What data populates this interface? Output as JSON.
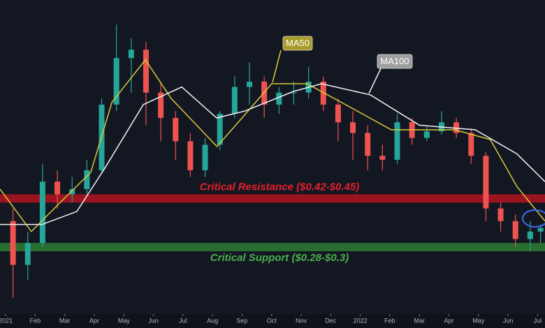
{
  "chart_data": {
    "type": "candlestick",
    "log_scale": true,
    "xlim": [
      -0.19,
      18.25
    ],
    "ylim": [
      0.166,
      2.27
    ],
    "xticks": [
      {
        "value": 0,
        "label": "2021"
      },
      {
        "value": 1,
        "label": "Feb"
      },
      {
        "value": 2,
        "label": "Mar"
      },
      {
        "value": 3,
        "label": "Apr"
      },
      {
        "value": 4,
        "label": "May"
      },
      {
        "value": 5,
        "label": "Jun"
      },
      {
        "value": 6,
        "label": "Jul"
      },
      {
        "value": 7,
        "label": "Aug"
      },
      {
        "value": 8,
        "label": "Sep"
      },
      {
        "value": 9,
        "label": "Oct"
      },
      {
        "value": 10,
        "label": "Nov"
      },
      {
        "value": 11,
        "label": "Dec"
      },
      {
        "value": 12,
        "label": "2022"
      },
      {
        "value": 13,
        "label": "Feb"
      },
      {
        "value": 14,
        "label": "Mar"
      },
      {
        "value": 15,
        "label": "Apr"
      },
      {
        "value": 16,
        "label": "May"
      },
      {
        "value": 17,
        "label": "Jun"
      },
      {
        "value": 18,
        "label": "Jul"
      }
    ],
    "up_color": "#26a69a",
    "down_color": "#ef5350",
    "x": [
      0.25,
      0.75,
      1.25,
      1.75,
      2.25,
      2.75,
      3.25,
      3.75,
      4.25,
      4.75,
      5.25,
      5.75,
      6.25,
      6.75,
      7.25,
      7.75,
      8.25,
      8.75,
      9.25,
      9.75,
      10.25,
      10.75,
      11.25,
      11.75,
      12.25,
      12.75,
      13.25,
      13.75,
      14.25,
      14.75,
      15.25,
      15.75,
      16.25,
      16.75,
      17.25,
      17.75,
      18.1
    ],
    "open": [
      0.36,
      0.25,
      0.3,
      0.5,
      0.45,
      0.47,
      0.55,
      0.95,
      1.4,
      1.5,
      1.05,
      0.85,
      0.7,
      0.55,
      0.68,
      0.88,
      1.1,
      1.15,
      0.95,
      1.05,
      1.05,
      1.15,
      0.95,
      0.82,
      0.75,
      0.62,
      0.6,
      0.82,
      0.72,
      0.76,
      0.82,
      0.75,
      0.62,
      0.4,
      0.36,
      0.31,
      0.33
    ],
    "high": [
      0.4,
      0.33,
      0.58,
      0.55,
      0.52,
      0.6,
      1.0,
      1.85,
      1.65,
      1.6,
      1.15,
      0.9,
      0.75,
      0.72,
      0.9,
      1.2,
      1.35,
      1.2,
      1.1,
      1.15,
      1.3,
      1.2,
      1.0,
      0.9,
      0.8,
      0.68,
      0.88,
      0.85,
      0.8,
      0.9,
      0.85,
      0.78,
      0.64,
      0.42,
      0.38,
      0.36,
      0.35
    ],
    "low": [
      0.19,
      0.22,
      0.29,
      0.4,
      0.42,
      0.45,
      0.54,
      0.9,
      1.05,
      0.8,
      0.7,
      0.6,
      0.52,
      0.52,
      0.65,
      0.85,
      0.95,
      0.85,
      0.88,
      0.95,
      1.0,
      0.9,
      0.7,
      0.6,
      0.55,
      0.55,
      0.58,
      0.68,
      0.7,
      0.74,
      0.72,
      0.58,
      0.36,
      0.33,
      0.29,
      0.28,
      0.3
    ],
    "close": [
      0.25,
      0.3,
      0.5,
      0.45,
      0.47,
      0.55,
      0.95,
      1.4,
      1.5,
      1.05,
      0.85,
      0.7,
      0.55,
      0.68,
      0.88,
      1.1,
      1.15,
      0.95,
      1.05,
      1.05,
      1.15,
      0.95,
      0.82,
      0.75,
      0.62,
      0.6,
      0.82,
      0.72,
      0.76,
      0.82,
      0.75,
      0.62,
      0.4,
      0.36,
      0.31,
      0.33,
      0.34
    ],
    "moving_averages": [
      {
        "name": "MA50",
        "color": "#d9c93b",
        "label_color": "#a89a28",
        "x": [
          -0.19,
          0.87,
          1.94,
          2.88,
          3.6,
          4.73,
          5.6,
          7.15,
          8.0,
          9.0,
          10.2,
          11.5,
          13.05,
          15.2,
          16.4,
          17.3,
          18.25
        ],
        "values": [
          0.47,
          0.33,
          0.43,
          0.54,
          0.97,
          1.38,
          1.0,
          0.67,
          0.85,
          1.13,
          1.13,
          0.95,
          0.77,
          0.77,
          0.71,
          0.48,
          0.36
        ]
      },
      {
        "name": "MA100",
        "color": "#f2f2f2",
        "label_color": "#9e9e9e",
        "x": [
          -0.19,
          1.23,
          2.41,
          3.36,
          4.66,
          5.96,
          7.14,
          8.09,
          9.74,
          10.69,
          12.34,
          14.0,
          15.89,
          17.3,
          18.25
        ],
        "values": [
          0.35,
          0.35,
          0.39,
          0.56,
          0.95,
          1.1,
          0.85,
          0.9,
          1.06,
          1.13,
          1.03,
          0.8,
          0.77,
          0.63,
          0.5
        ]
      }
    ],
    "bands": [
      {
        "label": "Critical Resistance ($0.42-$0.45)",
        "range": [
          0.42,
          0.45
        ],
        "color": "#b3141f",
        "text_color": "#e8202b"
      },
      {
        "label": "Critical Support ($0.28-$0.3)",
        "range": [
          0.28,
          0.3
        ],
        "color": "#2e7d32",
        "text_color": "#4caf50"
      }
    ]
  }
}
